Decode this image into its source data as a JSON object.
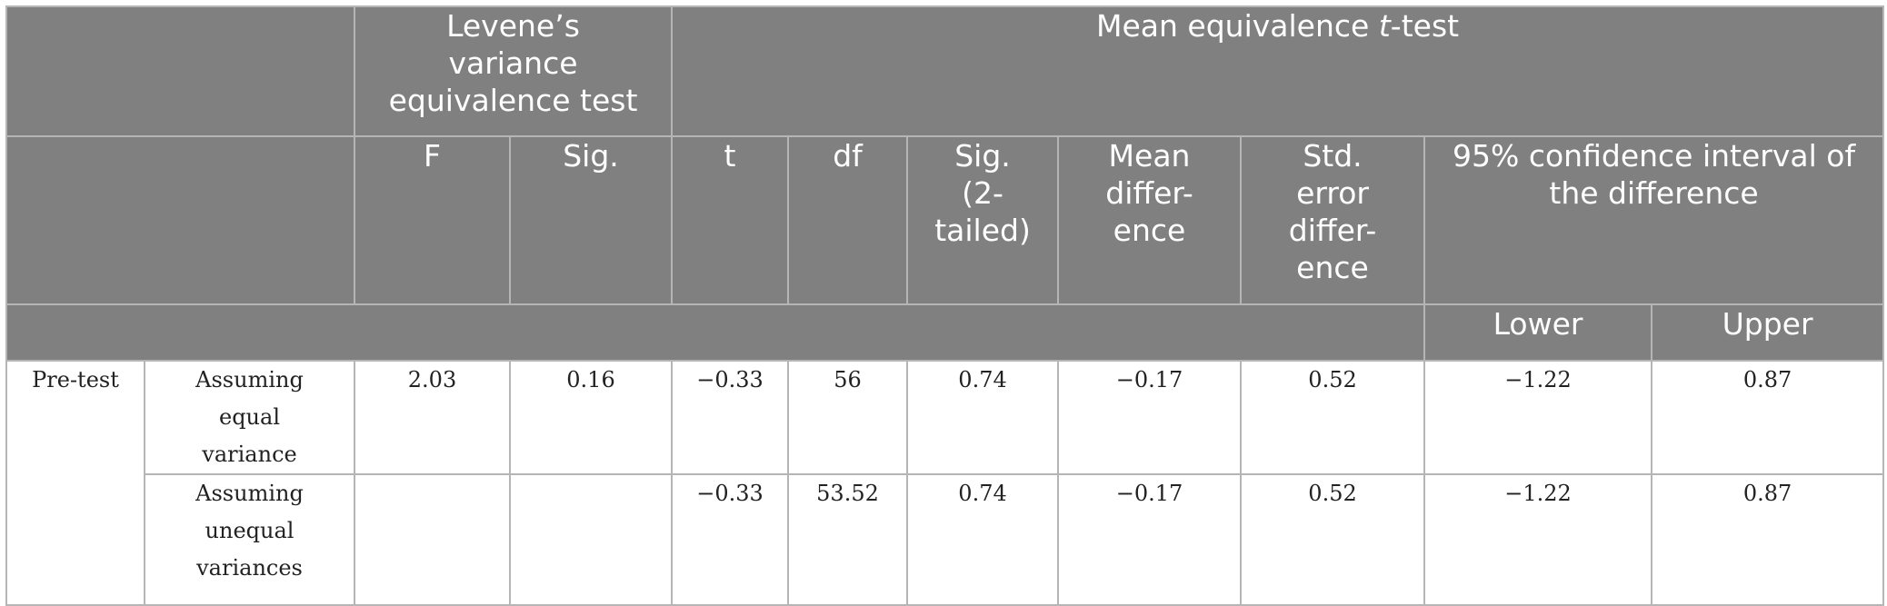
{
  "header": {
    "levene_title": "Levene’s variance equivalence test",
    "ttest_title_pre": "Mean equivalence ",
    "ttest_title_italic": "t",
    "ttest_title_post": "-test",
    "columns": {
      "f": "F",
      "sig": "Sig.",
      "t": "t",
      "df": "df",
      "sig2": "Sig. (2-tailed)",
      "mean_diff": "Mean differ-ence",
      "std_err": "Std. error differ-ence",
      "ci": "95% confidence interval of the difference",
      "lower": "Lower",
      "upper": "Upper"
    }
  },
  "group_label": "Pre-test",
  "rows": [
    {
      "label": "Assuming equal variance",
      "f": "2.03",
      "sig": "0.16",
      "t": "−0.33",
      "df": "56",
      "sig2": "0.74",
      "mean_diff": "−0.17",
      "std_err": "0.52",
      "lower": "−1.22",
      "upper": "0.87"
    },
    {
      "label": "Assuming unequal variances",
      "f": "",
      "sig": "",
      "t": "−0.33",
      "df": "53.52",
      "sig2": "0.74",
      "mean_diff": "−0.17",
      "std_err": "0.52",
      "lower": "−1.22",
      "upper": "0.87"
    }
  ]
}
